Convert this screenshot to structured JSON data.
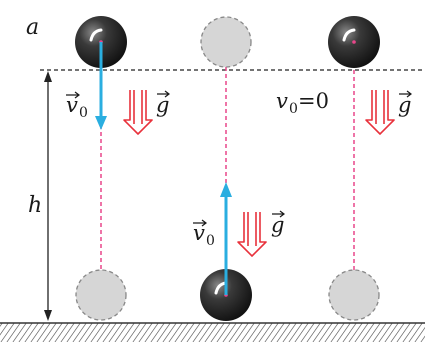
{
  "labels": {
    "panel_letter": "a",
    "height": "h",
    "v0_sym": "v",
    "v0_sub": "0",
    "g_sym": "g",
    "v0_zero_sym": "v",
    "v0_zero_sub": "0",
    "v0_zero_eq": "=0"
  },
  "colors": {
    "velocity_arrow": "#2aaee0",
    "gravity_arrow": "#e8323c",
    "trajectory": "#e8468a",
    "ball_dark": "#1e1e1e",
    "ball_ghost": "#d6d6d6",
    "ground_hatch": "#555555"
  },
  "icons": {
    "ball": "solid-ball-icon",
    "ghost_ball": "dashed-ball-icon",
    "gravity": "double-arrow-down-icon"
  }
}
